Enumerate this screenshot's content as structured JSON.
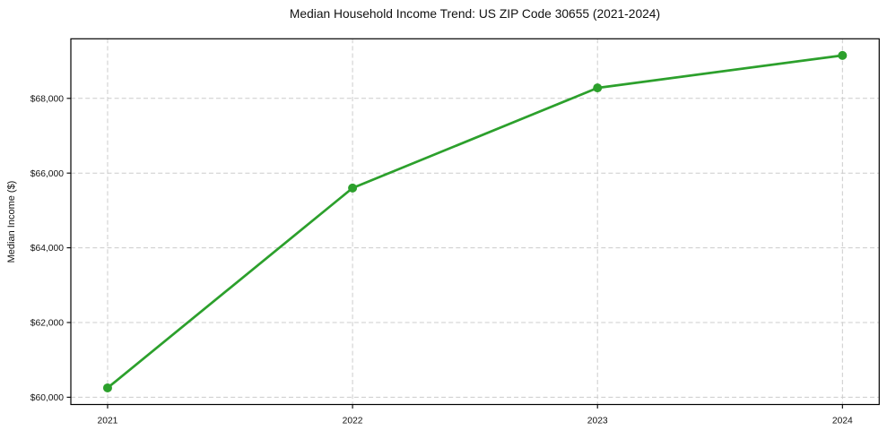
{
  "chart_data": {
    "type": "line",
    "title": "Median Household Income Trend: US ZIP Code 30655 (2021-2024)",
    "xlabel": "",
    "ylabel": "Median Income ($)",
    "x": [
      2021,
      2022,
      2023,
      2024
    ],
    "values": [
      60250,
      65600,
      68280,
      69150
    ],
    "x_tick_labels": [
      "2021",
      "2022",
      "2023",
      "2024"
    ],
    "y_ticks": [
      {
        "value": 60000,
        "label": "$60,000"
      },
      {
        "value": 62000,
        "label": "$62,000"
      },
      {
        "value": 64000,
        "label": "$64,000"
      },
      {
        "value": 66000,
        "label": "$66,000"
      },
      {
        "value": 68000,
        "label": "$68,000"
      }
    ],
    "xlim": [
      2020.85,
      2024.15
    ],
    "ylim": [
      59805,
      69595
    ],
    "grid": true,
    "grid_style": "dashed",
    "legend_position": "none",
    "line_color": "#2ca02c",
    "marker": "circle",
    "marker_color": "#2ca02c",
    "background_color": "#ffffff",
    "axes_color": "#000000",
    "gridline_color": "#cccccc"
  }
}
